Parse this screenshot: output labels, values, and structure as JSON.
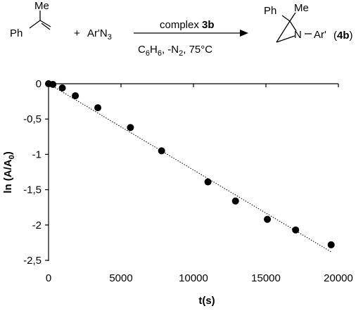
{
  "scheme": {
    "reactant1": {
      "substituent": "Me",
      "aryl": "Ph"
    },
    "plus": "+",
    "reactant2": {
      "prefix": "Ar'N",
      "sub": "3"
    },
    "arrow_above": {
      "text": "complex ",
      "bold": "3b"
    },
    "arrow_below": {
      "c": "C",
      "c_sub": "6",
      "h": "H",
      "h_sub": "6",
      "rest": ", -N",
      "n_sub": "2",
      "temp": ", 75°C"
    },
    "product": {
      "ph": "Ph",
      "me": "Me",
      "n": "N",
      "ar": "Ar'"
    },
    "label": {
      "open": "(",
      "bold": "4b",
      "close": ")"
    }
  },
  "chart_data": {
    "type": "scatter",
    "title": "",
    "xlabel": "t(s)",
    "ylabel": {
      "main": "ln (A/A",
      "sub": "0",
      "close": ")"
    },
    "xlim": [
      0,
      20000
    ],
    "ylim": [
      -2.5,
      0
    ],
    "xticks": [
      0,
      5000,
      10000,
      15000,
      20000
    ],
    "yticks": [
      0,
      -0.5,
      -1,
      -1.5,
      -2,
      -2.5
    ],
    "xtick_labels": [
      "0",
      "5000",
      "10000",
      "15000",
      "20000"
    ],
    "ytick_labels": [
      "0",
      "-0,5",
      "-1",
      "-1,5",
      "-2",
      "-2,5"
    ],
    "points": [
      {
        "x": 0,
        "y": 0.0
      },
      {
        "x": 300,
        "y": -0.01
      },
      {
        "x": 950,
        "y": -0.06
      },
      {
        "x": 1850,
        "y": -0.17
      },
      {
        "x": 3400,
        "y": -0.34
      },
      {
        "x": 5650,
        "y": -0.62
      },
      {
        "x": 7800,
        "y": -0.95
      },
      {
        "x": 11000,
        "y": -1.39
      },
      {
        "x": 12900,
        "y": -1.66
      },
      {
        "x": 15100,
        "y": -1.92
      },
      {
        "x": 17050,
        "y": -2.07
      },
      {
        "x": 19500,
        "y": -2.28
      }
    ],
    "fit_line": {
      "x": [
        0,
        19500
      ],
      "y": [
        0.0,
        -2.38
      ],
      "style": "dotted"
    },
    "grid": false,
    "legend": "none",
    "marker_color": "#000000"
  }
}
